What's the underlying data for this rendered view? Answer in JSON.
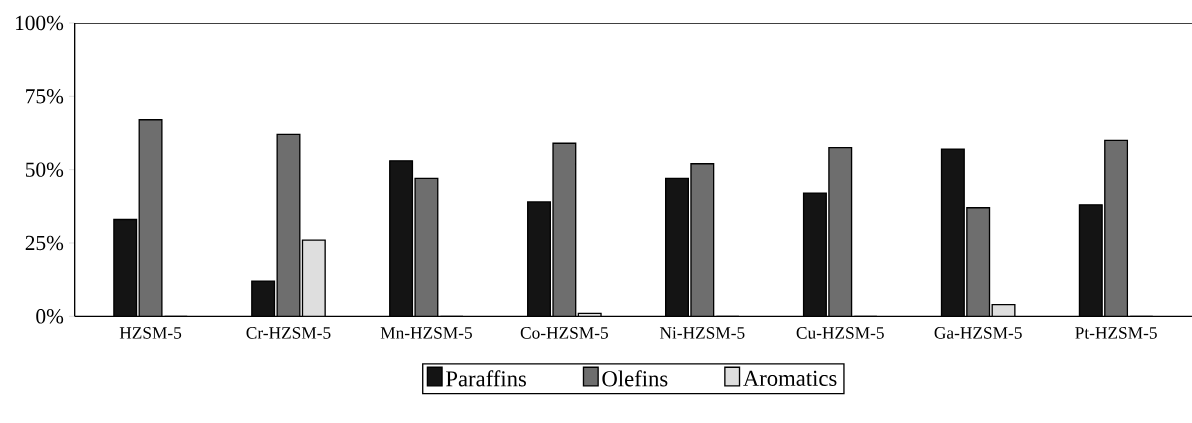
{
  "chart_data": {
    "type": "bar",
    "categories": [
      "HZSM-5",
      "Cr-HZSM-5",
      "Mn-HZSM-5",
      "Co-HZSM-5",
      "Ni-HZSM-5",
      "Cu-HZSM-5",
      "Ga-HZSM-5",
      "Pt-HZSM-5"
    ],
    "series": [
      {
        "name": "Paraffins",
        "color": "#141414",
        "values": [
          33,
          12,
          53,
          39,
          47,
          42,
          57,
          38
        ]
      },
      {
        "name": "Olefins",
        "color": "#6e6e6e",
        "values": [
          67,
          62,
          47,
          59,
          52,
          57.5,
          37,
          60
        ]
      },
      {
        "name": "Aromatics",
        "color": "#dedede",
        "values": [
          0,
          26,
          0,
          1,
          0,
          0,
          4,
          0
        ]
      }
    ],
    "ylim": [
      0,
      100
    ],
    "yticks": [
      {
        "value": 0,
        "label": "0%"
      },
      {
        "value": 25,
        "label": "25%"
      },
      {
        "value": 50,
        "label": "50%"
      },
      {
        "value": 75,
        "label": "75%"
      },
      {
        "value": 100,
        "label": "100%"
      }
    ],
    "grid": false,
    "legend": "bottom"
  }
}
